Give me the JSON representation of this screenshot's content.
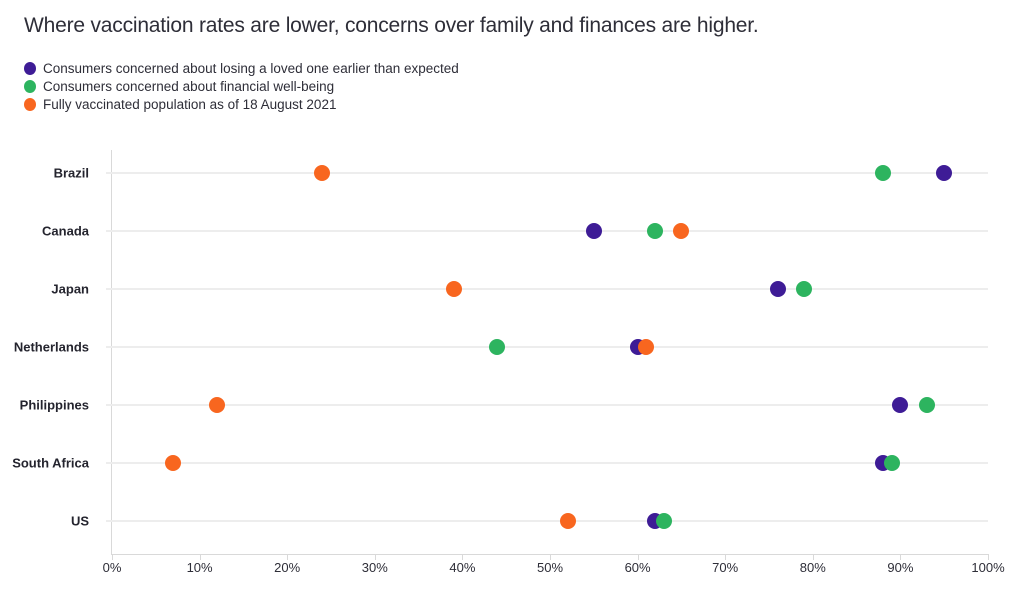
{
  "title": "Where vaccination rates are lower, concerns over family and finances are higher.",
  "colors": {
    "loved_one": "#3e1c96",
    "financial": "#2db45f",
    "vaccinated": "#f8661f",
    "text": "#2e2e38",
    "gridline": "#ededed",
    "axis": "#d9d9d9"
  },
  "legend": [
    {
      "label": "Consumers concerned about losing a loved one earlier than expected",
      "color_key": "loved_one"
    },
    {
      "label": "Consumers concerned about financial well-being",
      "color_key": "financial"
    },
    {
      "label": "Fully vaccinated population as of 18 August 2021",
      "color_key": "vaccinated"
    }
  ],
  "chart_data": {
    "type": "scatter",
    "subtype": "horizontal-dot-plot",
    "title": "Where vaccination rates are lower, concerns over family and finances are higher.",
    "categories": [
      "Brazil",
      "Canada",
      "Japan",
      "Netherlands",
      "Philippines",
      "South Africa",
      "US"
    ],
    "series": [
      {
        "name": "Consumers concerned about losing a loved one earlier than expected",
        "color": "#3e1c96",
        "values": [
          95,
          55,
          76,
          60,
          90,
          88,
          62
        ]
      },
      {
        "name": "Consumers concerned about financial well-being",
        "color": "#2db45f",
        "values": [
          88,
          62,
          79,
          44,
          93,
          89,
          63
        ]
      },
      {
        "name": "Fully vaccinated population as of 18 August 2021",
        "color": "#f8661f",
        "values": [
          24,
          65,
          39,
          61,
          12,
          7,
          52
        ]
      }
    ],
    "xlim": [
      0,
      100
    ],
    "x_ticks": [
      "0%",
      "10%",
      "20%",
      "30%",
      "40%",
      "50%",
      "60%",
      "70%",
      "80%",
      "90%",
      "100%"
    ],
    "x_tick_values": [
      0,
      10,
      20,
      30,
      40,
      50,
      60,
      70,
      80,
      90,
      100
    ],
    "grid": "horizontal row lines, light gray",
    "legend_position": "top-left"
  }
}
